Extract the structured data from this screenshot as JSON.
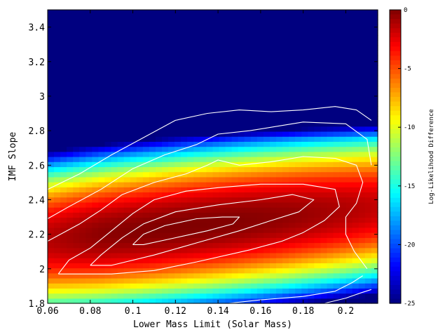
{
  "chart_data": {
    "type": "heatmap",
    "title": "",
    "xlabel": "Lower Mass Limit (Solar Mass)",
    "ylabel": "IMF Slope",
    "xlim": [
      0.06,
      0.215
    ],
    "ylim": [
      1.8,
      3.5
    ],
    "x_ticks": [
      0.06,
      0.08,
      0.1,
      0.12,
      0.14,
      0.16,
      0.18,
      0.2
    ],
    "x_tick_labels": [
      "0.06",
      "0.08",
      "0.1",
      "0.12",
      "0.14",
      "0.16",
      "0.18",
      "0.2"
    ],
    "y_ticks": [
      1.8,
      2.0,
      2.2,
      2.4,
      2.6,
      2.8,
      3.0,
      3.2,
      3.4
    ],
    "y_tick_labels": [
      "1.8",
      "2",
      "2.2",
      "2.4",
      "2.6",
      "2.8",
      "3",
      "3.2",
      "3.4"
    ],
    "colorbar": {
      "label": "Log-Likelihood Difference",
      "range": [
        -25,
        0
      ],
      "ticks": [
        0,
        -5,
        -10,
        -15,
        -20,
        -25
      ],
      "tick_labels": [
        "0",
        "-5",
        "-10",
        "-15",
        "-20",
        "-25"
      ],
      "colormap": "jet"
    },
    "peak": {
      "x": 0.125,
      "y": 2.25,
      "value": 0
    },
    "contours": [
      {
        "level": -1,
        "points": [
          [
            0.1,
            2.14
          ],
          [
            0.105,
            2.2
          ],
          [
            0.115,
            2.25
          ],
          [
            0.13,
            2.29
          ],
          [
            0.142,
            2.3
          ],
          [
            0.15,
            2.3
          ],
          [
            0.147,
            2.26
          ],
          [
            0.135,
            2.22
          ],
          [
            0.12,
            2.18
          ],
          [
            0.105,
            2.14
          ],
          [
            0.1,
            2.14
          ]
        ]
      },
      {
        "level": -3,
        "points": [
          [
            0.08,
            2.02
          ],
          [
            0.085,
            2.08
          ],
          [
            0.095,
            2.18
          ],
          [
            0.105,
            2.26
          ],
          [
            0.12,
            2.33
          ],
          [
            0.14,
            2.37
          ],
          [
            0.16,
            2.4
          ],
          [
            0.175,
            2.43
          ],
          [
            0.185,
            2.4
          ],
          [
            0.178,
            2.33
          ],
          [
            0.165,
            2.28
          ],
          [
            0.15,
            2.22
          ],
          [
            0.13,
            2.15
          ],
          [
            0.11,
            2.08
          ],
          [
            0.09,
            2.02
          ],
          [
            0.08,
            2.02
          ]
        ]
      },
      {
        "level": -5,
        "points": [
          [
            0.065,
            1.97
          ],
          [
            0.07,
            2.05
          ],
          [
            0.08,
            2.12
          ],
          [
            0.09,
            2.22
          ],
          [
            0.1,
            2.32
          ],
          [
            0.11,
            2.4
          ],
          [
            0.125,
            2.45
          ],
          [
            0.14,
            2.47
          ],
          [
            0.16,
            2.49
          ],
          [
            0.18,
            2.49
          ],
          [
            0.195,
            2.46
          ],
          [
            0.197,
            2.36
          ],
          [
            0.19,
            2.28
          ],
          [
            0.18,
            2.21
          ],
          [
            0.17,
            2.16
          ],
          [
            0.155,
            2.11
          ],
          [
            0.13,
            2.04
          ],
          [
            0.11,
            1.99
          ],
          [
            0.09,
            1.97
          ],
          [
            0.065,
            1.97
          ]
        ]
      },
      {
        "level": -8,
        "points": [
          [
            0.06,
            2.16
          ],
          [
            0.075,
            2.26
          ],
          [
            0.085,
            2.34
          ],
          [
            0.095,
            2.43
          ],
          [
            0.11,
            2.5
          ],
          [
            0.125,
            2.55
          ],
          [
            0.135,
            2.6
          ],
          [
            0.14,
            2.63
          ],
          [
            0.15,
            2.6
          ],
          [
            0.165,
            2.62
          ],
          [
            0.18,
            2.65
          ],
          [
            0.195,
            2.64
          ],
          [
            0.205,
            2.6
          ],
          [
            0.208,
            2.5
          ],
          [
            0.205,
            2.38
          ],
          [
            0.2,
            2.3
          ],
          [
            0.2,
            2.2
          ],
          [
            0.204,
            2.1
          ],
          [
            0.21,
            2.0
          ]
        ]
      },
      {
        "level": -10,
        "points": [
          [
            0.06,
            2.29
          ],
          [
            0.07,
            2.36
          ],
          [
            0.085,
            2.46
          ],
          [
            0.1,
            2.58
          ],
          [
            0.115,
            2.66
          ],
          [
            0.13,
            2.72
          ],
          [
            0.14,
            2.78
          ],
          [
            0.155,
            2.8
          ],
          [
            0.165,
            2.82
          ],
          [
            0.18,
            2.85
          ],
          [
            0.2,
            2.84
          ],
          [
            0.21,
            2.75
          ],
          [
            0.212,
            2.6
          ]
        ]
      },
      {
        "level": -12,
        "points": [
          [
            0.06,
            2.46
          ],
          [
            0.075,
            2.55
          ],
          [
            0.09,
            2.66
          ],
          [
            0.105,
            2.76
          ],
          [
            0.12,
            2.86
          ],
          [
            0.135,
            2.9
          ],
          [
            0.15,
            2.92
          ],
          [
            0.165,
            2.91
          ],
          [
            0.18,
            2.92
          ],
          [
            0.195,
            2.94
          ],
          [
            0.205,
            2.92
          ],
          [
            0.212,
            2.86
          ]
        ]
      },
      {
        "level": -7,
        "points": [
          [
            0.145,
            1.8
          ],
          [
            0.16,
            1.82
          ],
          [
            0.18,
            1.84
          ],
          [
            0.195,
            1.87
          ],
          [
            0.203,
            1.92
          ],
          [
            0.208,
            1.96
          ]
        ]
      },
      {
        "level": -9,
        "points": [
          [
            0.19,
            1.8
          ],
          [
            0.2,
            1.83
          ],
          [
            0.207,
            1.86
          ],
          [
            0.212,
            1.88
          ]
        ]
      }
    ]
  }
}
